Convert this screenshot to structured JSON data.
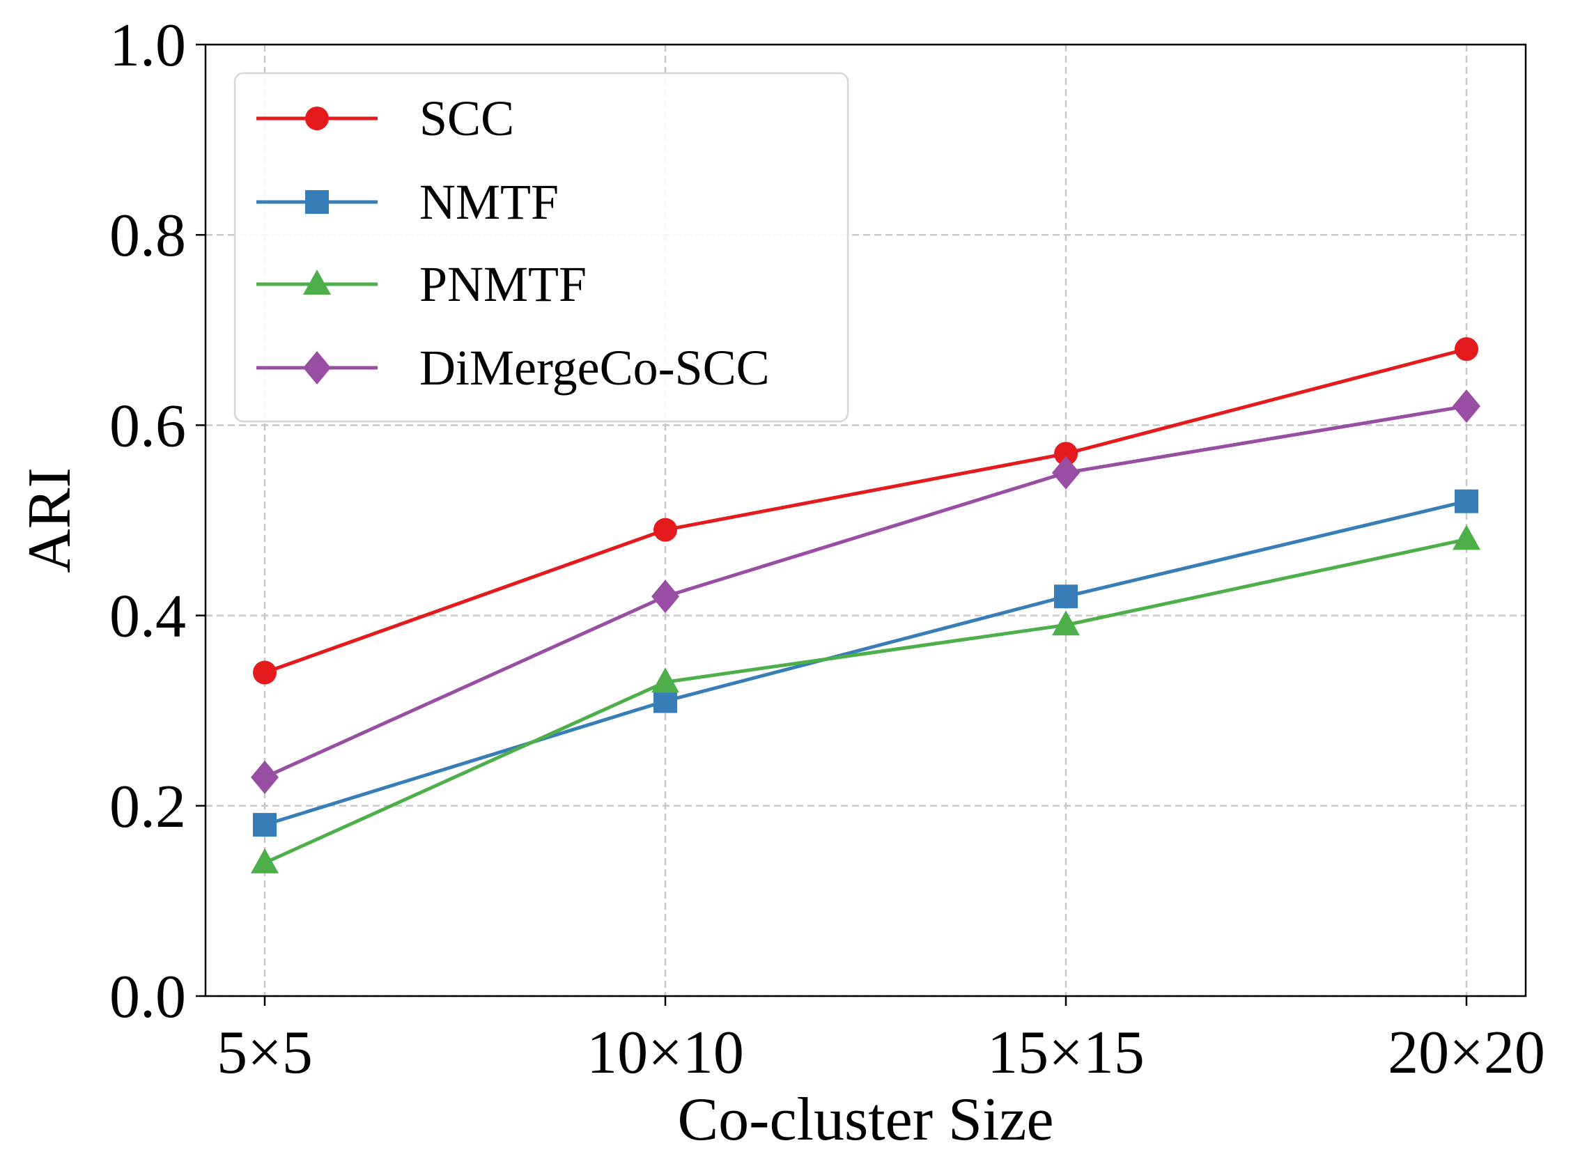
{
  "chart_data": {
    "type": "line",
    "title": "",
    "xlabel": "Co-cluster Size",
    "ylabel": "ARI",
    "categories": [
      "5×5",
      "10×10",
      "15×15",
      "20×20"
    ],
    "category_labels": [
      {
        "a": "5",
        "b": "5"
      },
      {
        "a": "10",
        "b": "10"
      },
      {
        "a": "15",
        "b": "15"
      },
      {
        "a": "20",
        "b": "20"
      }
    ],
    "multiply_sign": "×",
    "ylim": [
      0.0,
      1.0
    ],
    "yticks": [
      "0.0",
      "0.2",
      "0.4",
      "0.6",
      "0.8",
      "1.0"
    ],
    "grid": true,
    "legend_position": "top-left",
    "series": [
      {
        "name": "SCC",
        "values": [
          0.34,
          0.49,
          0.57,
          0.68
        ],
        "color": "#e41a1c",
        "marker": "circle"
      },
      {
        "name": "NMTF",
        "values": [
          0.18,
          0.31,
          0.42,
          0.52
        ],
        "color": "#377eb8",
        "marker": "square"
      },
      {
        "name": "PNMTF",
        "values": [
          0.14,
          0.33,
          0.39,
          0.48
        ],
        "color": "#4daf4a",
        "marker": "triangle"
      },
      {
        "name": "DiMergeCo-SCC",
        "values": [
          0.23,
          0.42,
          0.55,
          0.62
        ],
        "color": "#984ea3",
        "marker": "diamond"
      }
    ]
  }
}
